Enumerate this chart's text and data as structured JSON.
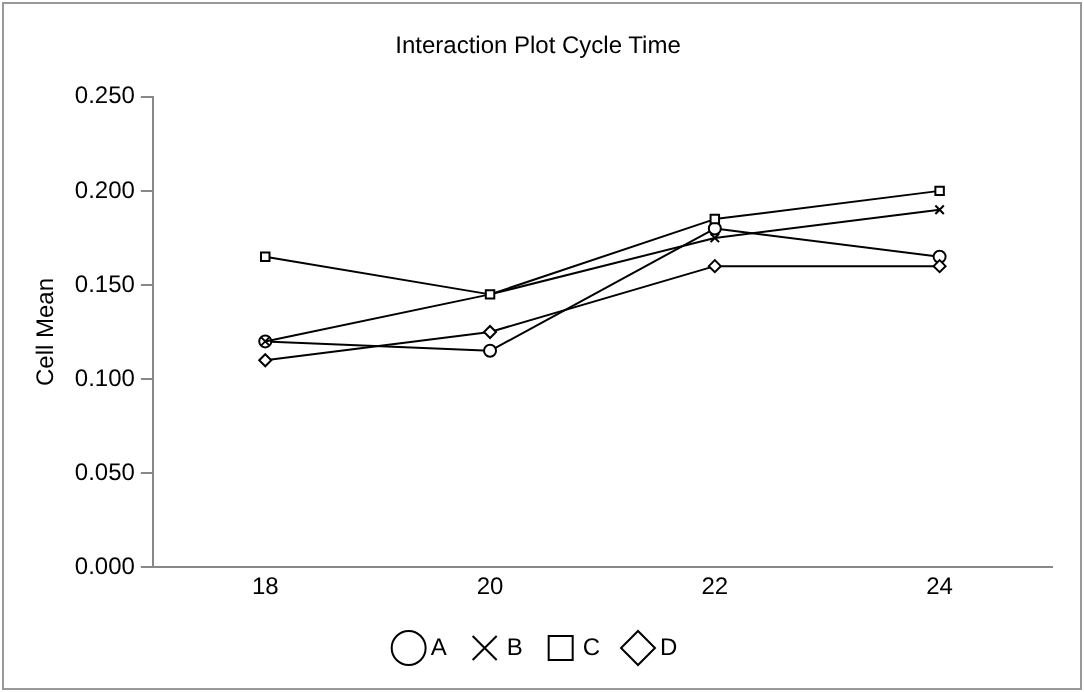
{
  "chart_data": {
    "type": "line",
    "title": "Interaction Plot Cycle Time",
    "ylabel": "Cell Mean",
    "categories": [
      "18",
      "20",
      "22",
      "24"
    ],
    "series": [
      {
        "name": "A",
        "color": "#000000",
        "marker": "circle",
        "values": [
          0.12,
          0.115,
          0.18,
          0.165
        ]
      },
      {
        "name": "B",
        "color": "#000000",
        "marker": "cross",
        "values": [
          0.12,
          0.145,
          0.175,
          0.19
        ]
      },
      {
        "name": "C",
        "color": "#000000",
        "marker": "square",
        "values": [
          0.165,
          0.145,
          0.185,
          0.2
        ]
      },
      {
        "name": "D",
        "color": "#000000",
        "marker": "diamond",
        "values": [
          0.11,
          0.125,
          0.16,
          0.16
        ]
      }
    ],
    "ylim": [
      0,
      0.25
    ],
    "yticks": [
      {
        "value": 0,
        "label": "0.000"
      },
      {
        "value": 0.05,
        "label": "0.050"
      },
      {
        "value": 0.1,
        "label": "0.100"
      },
      {
        "value": 0.15,
        "label": "0.150"
      },
      {
        "value": 0.2,
        "label": "0.200"
      },
      {
        "value": 0.25,
        "label": "0.250"
      }
    ],
    "grid": false,
    "legend": "bottom",
    "line_style": "solid"
  }
}
